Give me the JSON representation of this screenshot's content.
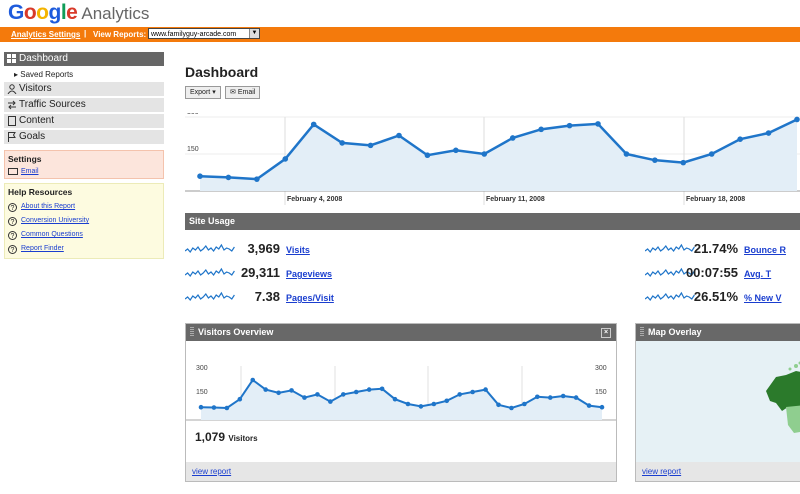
{
  "app": {
    "brand": "Google",
    "product": "Analytics"
  },
  "topbar": {
    "settings_link": "Analytics Settings",
    "separator": "|",
    "view_reports_label": "View Reports:",
    "site_select": "www.familyguy-arcade.com"
  },
  "sidebar": {
    "items": [
      {
        "label": "Dashboard",
        "icon": "grid-icon"
      },
      {
        "label": "Visitors",
        "icon": "person-icon"
      },
      {
        "label": "Traffic Sources",
        "icon": "arrows-icon"
      },
      {
        "label": "Content",
        "icon": "page-icon"
      },
      {
        "label": "Goals",
        "icon": "flag-icon"
      }
    ],
    "saved_reports": "Saved Reports",
    "settings": {
      "title": "Settings",
      "email": "Email"
    },
    "help": {
      "title": "Help Resources",
      "links": [
        "About this Report",
        "Conversion University",
        "Common Questions",
        "Report Finder"
      ]
    }
  },
  "main": {
    "title": "Dashboard",
    "export_label": "Export",
    "email_label": "Email"
  },
  "chart_data": [
    {
      "type": "area",
      "ylim": [
        0,
        300
      ],
      "yticks": [
        "300",
        "150"
      ],
      "xlabels": [
        "February 4, 2008",
        "February 11, 2008",
        "February 18, 2008"
      ],
      "values": [
        60,
        55,
        48,
        130,
        270,
        195,
        185,
        225,
        145,
        165,
        150,
        215,
        250,
        265,
        272,
        150,
        125,
        115,
        150,
        210,
        235,
        290
      ]
    },
    {
      "type": "area",
      "ylim": [
        0,
        300
      ],
      "yticks_left": [
        "300",
        "150"
      ],
      "yticks_right": [
        "300",
        "150"
      ],
      "values": [
        80,
        78,
        75,
        130,
        250,
        190,
        170,
        185,
        140,
        160,
        115,
        160,
        175,
        190,
        195,
        130,
        100,
        85,
        100,
        120,
        160,
        175,
        190,
        95,
        75,
        100,
        145,
        140,
        150,
        140,
        90,
        80
      ]
    }
  ],
  "site_usage": {
    "title": "Site Usage",
    "left": [
      {
        "value": "3,969",
        "label": "Visits"
      },
      {
        "value": "29,311",
        "label": "Pageviews"
      },
      {
        "value": "7.38",
        "label": "Pages/Visit"
      }
    ],
    "right": [
      {
        "value": "21.74%",
        "label": "Bounce R"
      },
      {
        "value": "00:07:55",
        "label": "Avg. T"
      },
      {
        "value": "26.51%",
        "label": "% New V"
      }
    ]
  },
  "visitors_overview": {
    "title": "Visitors Overview",
    "count": "1,079",
    "count_label": "Visitors",
    "footer_link": "view report"
  },
  "map_overlay": {
    "title": "Map Overlay",
    "footer_link": "view report"
  },
  "colors": {
    "accent": "#f47a0c",
    "line": "#1f75c9",
    "fill": "#e3eef7",
    "bar": "#686868"
  }
}
